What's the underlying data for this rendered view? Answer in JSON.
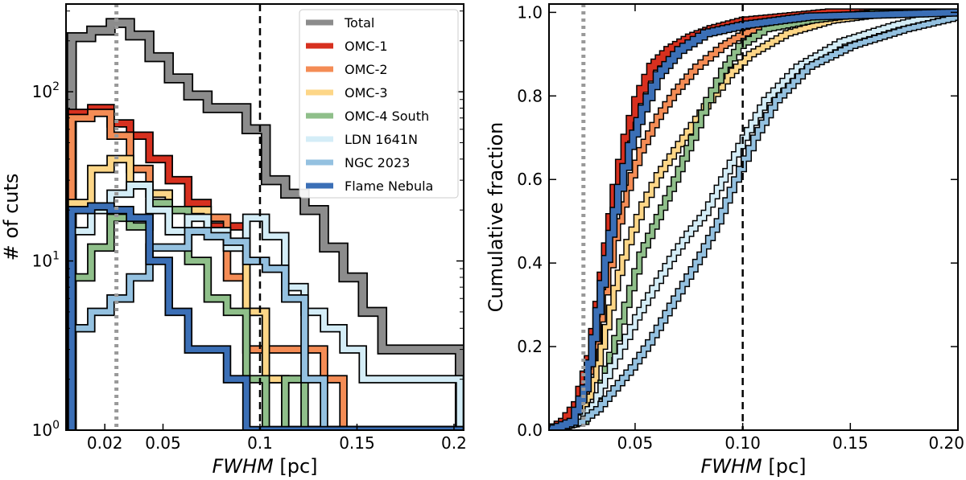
{
  "chart_data": [
    {
      "type": "histogram",
      "xlabel_italic": "FWHM",
      "xlabel_unit": " [pc]",
      "ylabel": "# of cuts",
      "xlim": [
        0.0,
        0.205
      ],
      "ylim": [
        1,
        330
      ],
      "yscale": "log",
      "xticks": [
        0.02,
        0.05,
        0.1,
        0.15,
        0.2
      ],
      "xtick_labels": [
        "0.02",
        "0.05",
        "0.1",
        "0.15",
        "0.2"
      ],
      "yticks": [
        1,
        10,
        100
      ],
      "ytick_bases": [
        "10",
        "10",
        "10"
      ],
      "ytick_exps": [
        "0",
        "1",
        "2"
      ],
      "vlines": [
        {
          "x": 0.026,
          "style": "dotted",
          "color": "#999999"
        },
        {
          "x": 0.1,
          "style": "dashed",
          "color": "#000000"
        }
      ],
      "legend_position": "top-right",
      "bin_edges": [
        0.003,
        0.013,
        0.023,
        0.033,
        0.043,
        0.053,
        0.063,
        0.073,
        0.083,
        0.093,
        0.103,
        0.113,
        0.123,
        0.133,
        0.143,
        0.153,
        0.163,
        0.173,
        0.183,
        0.193,
        0.203
      ],
      "series": [
        {
          "name": "Total",
          "color": "#8c8c8c",
          "counts": [
            210,
            230,
            255,
            215,
            160,
            120,
            95,
            80,
            80,
            60,
            30,
            25,
            20,
            12,
            8,
            5,
            3,
            3,
            3,
            3
          ]
        },
        {
          "name": "OMC-1",
          "color": "#d7301f",
          "counts": [
            75,
            80,
            65,
            55,
            40,
            30,
            22,
            16,
            16,
            5,
            2,
            1,
            1,
            1,
            1,
            1,
            1,
            1,
            1,
            1
          ]
        },
        {
          "name": "OMC-2",
          "color": "#f48c55",
          "counts": [
            70,
            75,
            55,
            35,
            25,
            20,
            15,
            18,
            8,
            3,
            3,
            3,
            3,
            2,
            1,
            1,
            1,
            1,
            1,
            1
          ]
        },
        {
          "name": "OMC-3",
          "color": "#fdd687",
          "counts": [
            22,
            35,
            40,
            28,
            25,
            15,
            20,
            15,
            12,
            5,
            2,
            1,
            1,
            1,
            1,
            1,
            1,
            1,
            1,
            1
          ]
        },
        {
          "name": "OMC-4 South",
          "color": "#8fbf8a",
          "counts": [
            8,
            12,
            18,
            16,
            22,
            20,
            10,
            6,
            5,
            2,
            1,
            2,
            1,
            1,
            1,
            1,
            1,
            1,
            1,
            1
          ]
        },
        {
          "name": "LDN 1641N",
          "color": "#d4edf7",
          "counts": [
            15,
            20,
            25,
            28,
            20,
            15,
            18,
            15,
            12,
            18,
            14,
            7,
            5,
            4,
            3,
            2,
            2,
            2,
            2,
            2
          ]
        },
        {
          "name": "NGC 2023",
          "color": "#94c1e0",
          "counts": [
            4,
            5,
            6,
            8,
            12,
            12,
            15,
            14,
            13,
            10,
            9,
            6,
            2,
            1,
            1,
            1,
            1,
            1,
            1,
            1
          ]
        },
        {
          "name": "Flame Nebula",
          "color": "#3b6fb6",
          "counts": [
            20,
            21,
            20,
            18,
            10,
            5,
            3,
            3,
            2,
            1,
            1,
            1,
            1,
            1,
            1,
            1,
            1,
            1,
            1,
            1
          ]
        }
      ]
    },
    {
      "type": "line",
      "xlabel_italic": "FWHM",
      "xlabel_unit": " [pc]",
      "ylabel": "Cumulative fraction",
      "xlim": [
        0.01,
        0.2
      ],
      "ylim": [
        0.0,
        1.02
      ],
      "xticks": [
        0.05,
        0.1,
        0.15,
        0.2
      ],
      "xtick_labels": [
        "0.05",
        "0.10",
        "0.15",
        "0.20"
      ],
      "yticks": [
        0.0,
        0.2,
        0.4,
        0.6,
        0.8,
        1.0
      ],
      "ytick_labels": [
        "0.0",
        "0.2",
        "0.4",
        "0.6",
        "0.8",
        "1.0"
      ],
      "vlines": [
        {
          "x": 0.026,
          "style": "dotted",
          "color": "#999999"
        },
        {
          "x": 0.1,
          "style": "dashed",
          "color": "#000000"
        }
      ],
      "series": [
        {
          "name": "OMC-1",
          "color": "#d7301f",
          "points": [
            [
              0.01,
              0.0
            ],
            [
              0.016,
              0.02
            ],
            [
              0.022,
              0.06
            ],
            [
              0.028,
              0.17
            ],
            [
              0.032,
              0.3
            ],
            [
              0.036,
              0.44
            ],
            [
              0.04,
              0.58
            ],
            [
              0.045,
              0.7
            ],
            [
              0.05,
              0.79
            ],
            [
              0.057,
              0.87
            ],
            [
              0.065,
              0.91
            ],
            [
              0.075,
              0.94
            ],
            [
              0.085,
              0.96
            ],
            [
              0.1,
              0.98
            ],
            [
              0.12,
              0.99
            ],
            [
              0.14,
              1.0
            ],
            [
              0.2,
              1.0
            ]
          ]
        },
        {
          "name": "OMC-2",
          "color": "#f48c55",
          "points": [
            [
              0.01,
              0.0
            ],
            [
              0.02,
              0.02
            ],
            [
              0.026,
              0.08
            ],
            [
              0.031,
              0.2
            ],
            [
              0.035,
              0.33
            ],
            [
              0.04,
              0.46
            ],
            [
              0.046,
              0.58
            ],
            [
              0.052,
              0.67
            ],
            [
              0.06,
              0.75
            ],
            [
              0.068,
              0.81
            ],
            [
              0.078,
              0.87
            ],
            [
              0.09,
              0.92
            ],
            [
              0.1,
              0.95
            ],
            [
              0.12,
              0.98
            ],
            [
              0.16,
              1.0
            ],
            [
              0.2,
              1.0
            ]
          ]
        },
        {
          "name": "OMC-3",
          "color": "#fdd687",
          "points": [
            [
              0.01,
              0.0
            ],
            [
              0.022,
              0.02
            ],
            [
              0.028,
              0.08
            ],
            [
              0.034,
              0.2
            ],
            [
              0.04,
              0.34
            ],
            [
              0.046,
              0.45
            ],
            [
              0.053,
              0.54
            ],
            [
              0.06,
              0.61
            ],
            [
              0.068,
              0.67
            ],
            [
              0.076,
              0.73
            ],
            [
              0.084,
              0.79
            ],
            [
              0.093,
              0.85
            ],
            [
              0.103,
              0.9
            ],
            [
              0.12,
              0.95
            ],
            [
              0.14,
              0.98
            ],
            [
              0.17,
              1.0
            ],
            [
              0.2,
              1.0
            ]
          ]
        },
        {
          "name": "OMC-4 South",
          "color": "#8fbf8a",
          "points": [
            [
              0.01,
              0.0
            ],
            [
              0.025,
              0.02
            ],
            [
              0.032,
              0.08
            ],
            [
              0.038,
              0.18
            ],
            [
              0.045,
              0.3
            ],
            [
              0.052,
              0.42
            ],
            [
              0.06,
              0.51
            ],
            [
              0.068,
              0.6
            ],
            [
              0.076,
              0.7
            ],
            [
              0.083,
              0.79
            ],
            [
              0.09,
              0.86
            ],
            [
              0.098,
              0.92
            ],
            [
              0.11,
              0.96
            ],
            [
              0.13,
              0.98
            ],
            [
              0.16,
              1.0
            ],
            [
              0.2,
              1.0
            ]
          ]
        },
        {
          "name": "LDN 1641N",
          "color": "#d4edf7",
          "points": [
            [
              0.01,
              0.0
            ],
            [
              0.022,
              0.02
            ],
            [
              0.03,
              0.06
            ],
            [
              0.036,
              0.13
            ],
            [
              0.043,
              0.2
            ],
            [
              0.05,
              0.27
            ],
            [
              0.058,
              0.34
            ],
            [
              0.066,
              0.41
            ],
            [
              0.074,
              0.47
            ],
            [
              0.082,
              0.52
            ],
            [
              0.09,
              0.6
            ],
            [
              0.1,
              0.7
            ],
            [
              0.11,
              0.79
            ],
            [
              0.125,
              0.87
            ],
            [
              0.145,
              0.93
            ],
            [
              0.17,
              0.97
            ],
            [
              0.195,
              1.0
            ],
            [
              0.2,
              1.0
            ]
          ]
        },
        {
          "name": "NGC 2023",
          "color": "#94c1e0",
          "points": [
            [
              0.01,
              0.0
            ],
            [
              0.024,
              0.02
            ],
            [
              0.032,
              0.05
            ],
            [
              0.04,
              0.1
            ],
            [
              0.048,
              0.15
            ],
            [
              0.056,
              0.21
            ],
            [
              0.064,
              0.28
            ],
            [
              0.072,
              0.35
            ],
            [
              0.08,
              0.42
            ],
            [
              0.088,
              0.5
            ],
            [
              0.096,
              0.6
            ],
            [
              0.105,
              0.7
            ],
            [
              0.115,
              0.79
            ],
            [
              0.13,
              0.87
            ],
            [
              0.15,
              0.92
            ],
            [
              0.175,
              0.96
            ],
            [
              0.2,
              0.99
            ]
          ]
        },
        {
          "name": "Flame Nebula",
          "color": "#3b6fb6",
          "points": [
            [
              0.01,
              0.0
            ],
            [
              0.02,
              0.02
            ],
            [
              0.026,
              0.1
            ],
            [
              0.03,
              0.22
            ],
            [
              0.034,
              0.35
            ],
            [
              0.038,
              0.47
            ],
            [
              0.042,
              0.58
            ],
            [
              0.047,
              0.68
            ],
            [
              0.053,
              0.77
            ],
            [
              0.06,
              0.85
            ],
            [
              0.07,
              0.91
            ],
            [
              0.082,
              0.95
            ],
            [
              0.1,
              0.97
            ],
            [
              0.13,
              0.99
            ],
            [
              0.2,
              1.0
            ]
          ]
        }
      ]
    }
  ]
}
